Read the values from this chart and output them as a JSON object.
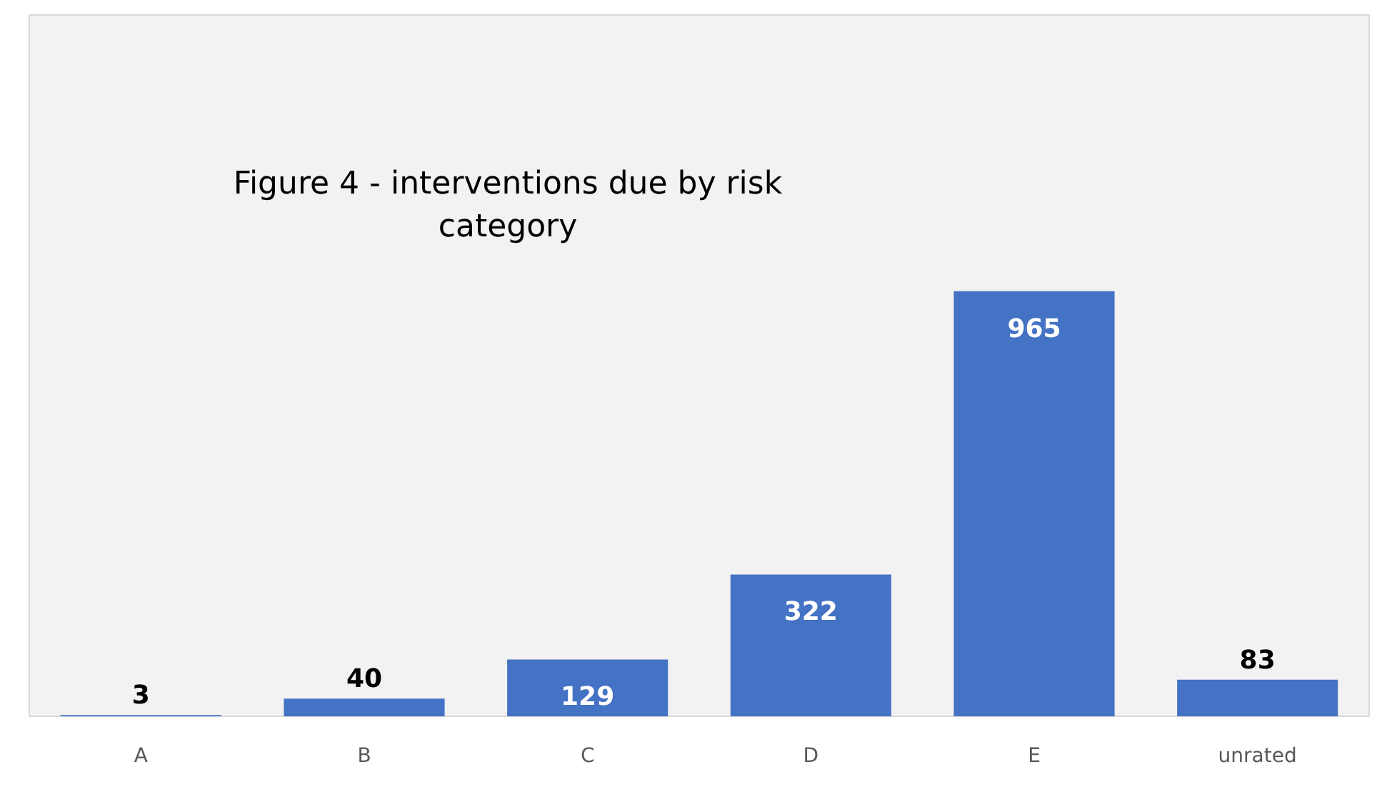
{
  "chart_data": {
    "type": "bar",
    "title": "Figure 4 - interventions due by risk\ncategory",
    "categories": [
      "A",
      "B",
      "C",
      "D",
      "E",
      "unrated"
    ],
    "values": [
      3,
      40,
      129,
      322,
      965,
      83
    ],
    "color": "#4472c4",
    "data_labels": true
  }
}
